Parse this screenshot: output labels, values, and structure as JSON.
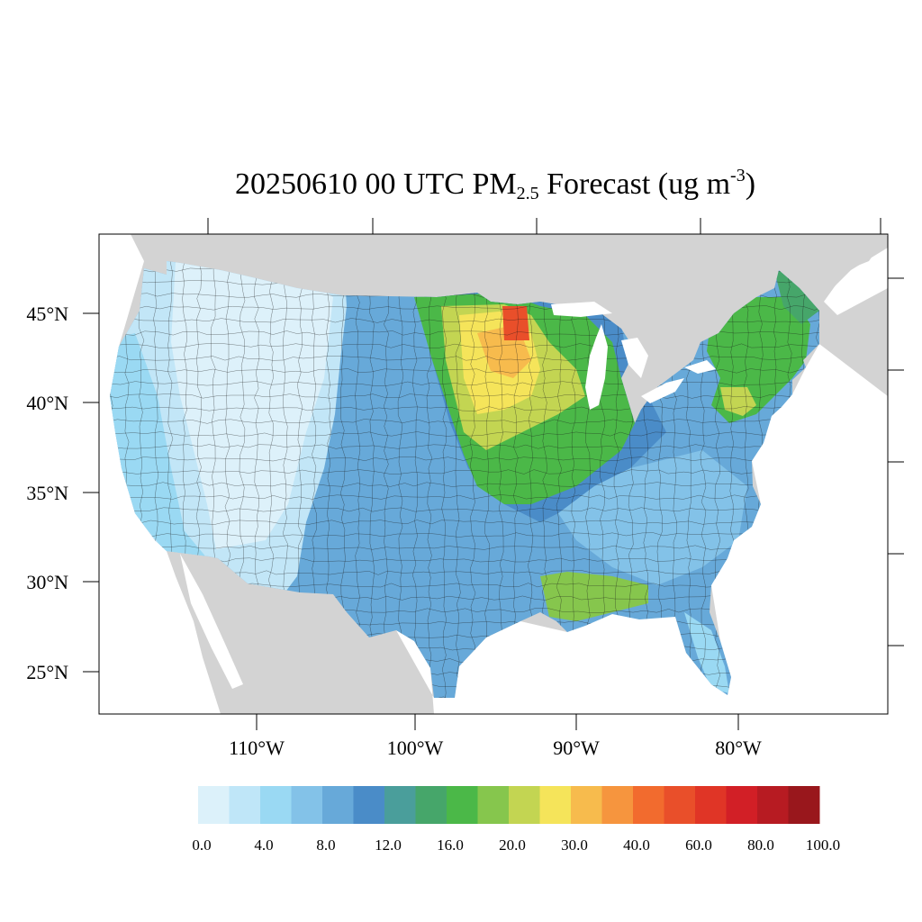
{
  "title": {
    "main": "20250610 00 UTC PM",
    "sub": "2.5",
    "mid": " Forecast (ug m",
    "sup": "-3",
    "end": ")"
  },
  "lat_labels": [
    "45°N",
    "40°N",
    "35°N",
    "30°N",
    "25°N"
  ],
  "lon_labels": [
    "110°W",
    "100°W",
    "90°W",
    "80°W"
  ],
  "colorbar": {
    "colors": [
      "#dcf1fa",
      "#bfe6f8",
      "#9ad9f3",
      "#83c2e8",
      "#67a9d9",
      "#4a8cc8",
      "#4a9e9b",
      "#46a66a",
      "#4bb848",
      "#86c64d",
      "#c3d552",
      "#f5e45a",
      "#f7bb4d",
      "#f6953e",
      "#f26b2e",
      "#e94f2a",
      "#e03526",
      "#d21f26",
      "#b71b22",
      "#99171c"
    ],
    "labels": [
      "0.0",
      "4.0",
      "8.0",
      "12.0",
      "16.0",
      "20.0",
      "30.0",
      "40.0",
      "60.0",
      "80.0",
      "100.0"
    ]
  },
  "colors": {
    "land_bg": "#d3d3d3",
    "water": "#ffffff",
    "west": "#c2e6f7",
    "mountain": "#ddf1fa",
    "plains": "#4a8cc8",
    "southeast": "#67a9d9",
    "midwest_core": "#f5e45a",
    "hotspot": "#e94f2a"
  }
}
